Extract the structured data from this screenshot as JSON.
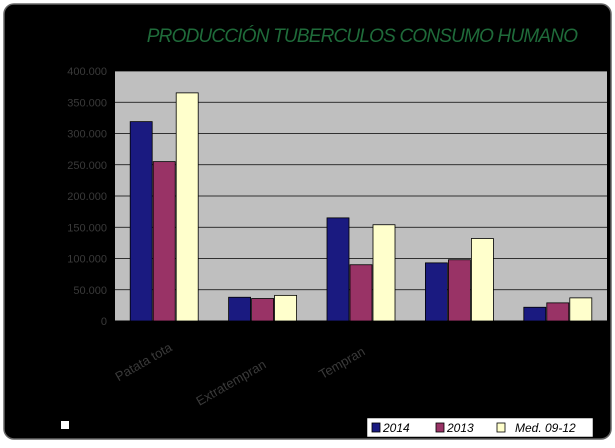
{
  "chart_data": {
    "type": "bar",
    "title": "PRODUCCIÓN TUBERCULOS CONSUMO HUMANO",
    "categories": [
      "Patata total",
      "Extratempranas",
      "Tempranas",
      "",
      ""
    ],
    "category_labels_visible": [
      "Patata tota",
      "Extratempran",
      "Tempran",
      "",
      ""
    ],
    "series": [
      {
        "name": "2014",
        "values": [
          319000,
          38000,
          165000,
          93000,
          22000
        ]
      },
      {
        "name": "2013",
        "values": [
          255000,
          36000,
          90000,
          98000,
          29000
        ]
      },
      {
        "name": "Med. 09-12",
        "values": [
          365000,
          41000,
          154000,
          132000,
          37000
        ]
      }
    ],
    "xlabel": "",
    "ylabel": "",
    "ylim": [
      0,
      400000
    ],
    "yticks": [
      0,
      50000,
      100000,
      150000,
      200000,
      250000,
      300000,
      350000,
      400000
    ],
    "ytick_labels": [
      "0",
      "50.000",
      "100.000",
      "150.000",
      "200.000",
      "250.000",
      "300.000",
      "350.000",
      "400.000"
    ],
    "grid": true,
    "legend_position": "bottom-right",
    "colors": {
      "frame_background": "#000000",
      "plot_background": "#bfbfbf",
      "title": "#1f6b3a",
      "axis_text": "#3a3a3a",
      "series": [
        "#1a1a80",
        "#993366",
        "#ffffcc"
      ],
      "legend_background": "#ffffff"
    }
  }
}
